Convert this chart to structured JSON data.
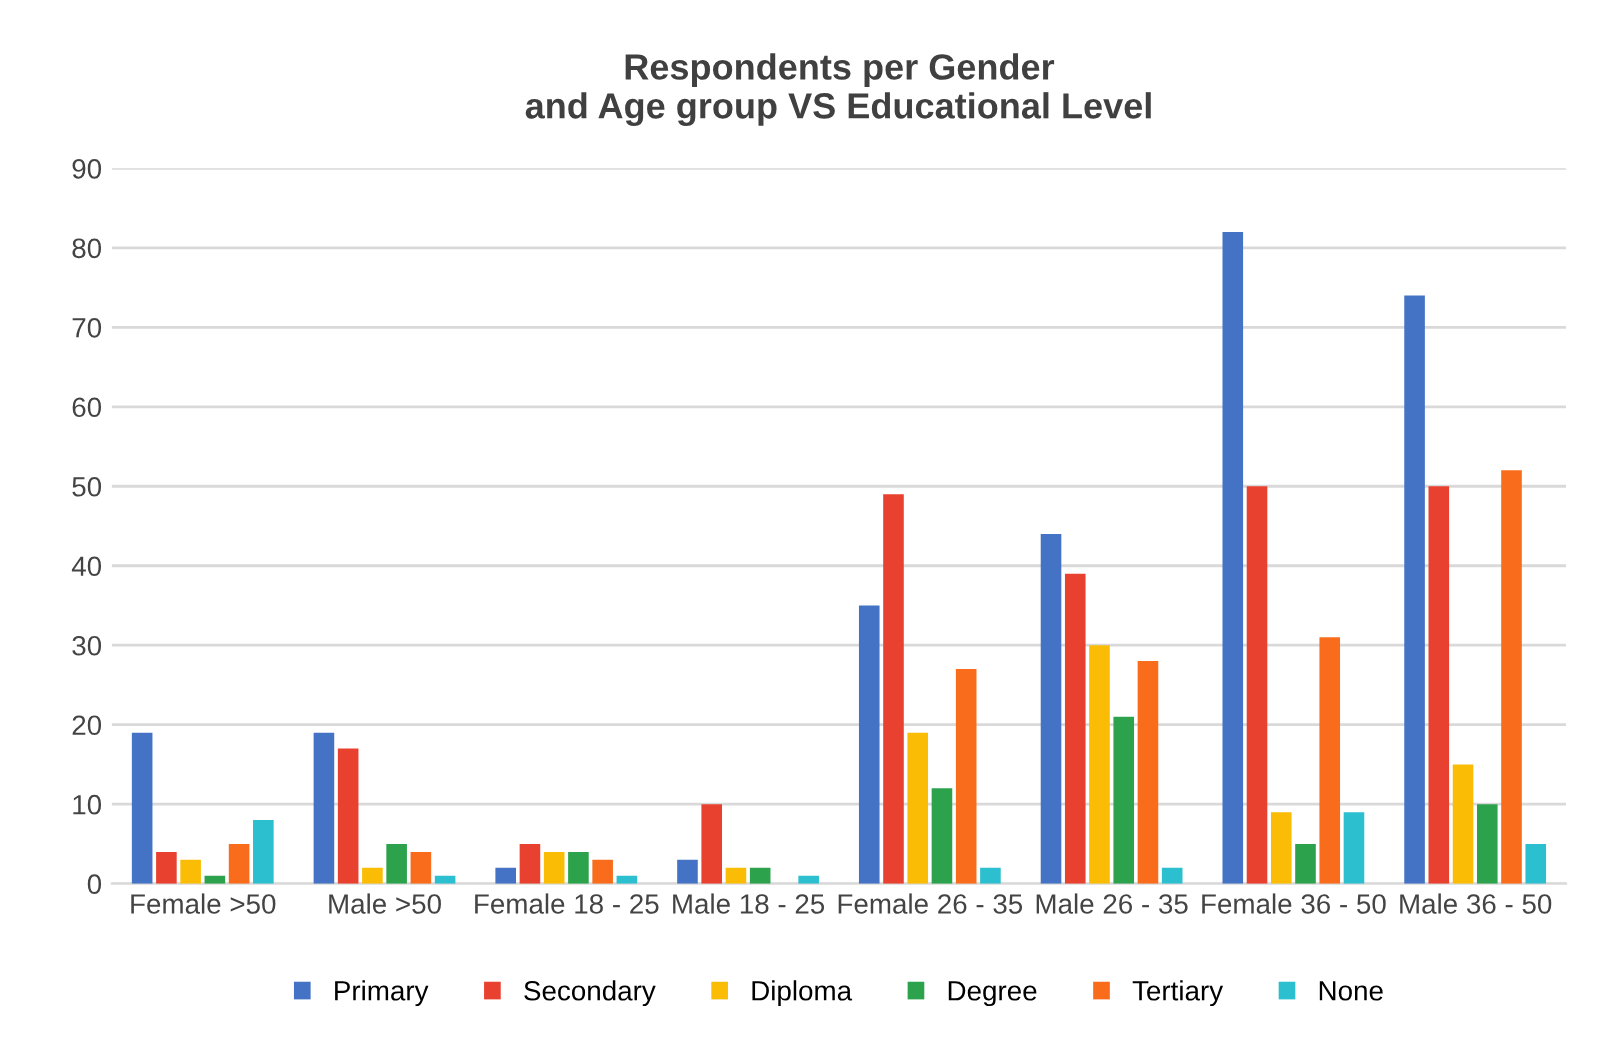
{
  "chart_data": {
    "type": "bar",
    "title": "Respondents per Gender\nand Age group VS Educational Level",
    "categories": [
      "Female >50",
      "Male >50",
      "Female 18 - 25",
      "Male 18 - 25",
      "Female 26 - 35",
      "Male 26 - 35",
      "Female 36 - 50",
      "Male 36 - 50"
    ],
    "series": [
      {
        "name": "Primary",
        "color": "#4472c4",
        "values": [
          19,
          19,
          2,
          3,
          35,
          44,
          82,
          74
        ]
      },
      {
        "name": "Secondary",
        "color": "#e8412f",
        "values": [
          4,
          17,
          5,
          10,
          49,
          39,
          50,
          50
        ]
      },
      {
        "name": "Diploma",
        "color": "#fbbc05",
        "values": [
          3,
          2,
          4,
          2,
          19,
          30,
          9,
          15
        ]
      },
      {
        "name": "Degree",
        "color": "#2ca24c",
        "values": [
          1,
          5,
          4,
          2,
          12,
          21,
          5,
          10
        ]
      },
      {
        "name": "Tertiary",
        "color": "#f86c1c",
        "values": [
          5,
          4,
          3,
          0,
          27,
          28,
          31,
          52
        ]
      },
      {
        "name": "None",
        "color": "#2cbfcf",
        "values": [
          8,
          1,
          1,
          1,
          2,
          2,
          9,
          5
        ]
      }
    ],
    "ylim": [
      0,
      90
    ],
    "yticks": [
      0,
      10,
      20,
      30,
      40,
      50,
      60,
      70,
      80,
      90
    ],
    "grid": "y",
    "legend": "bottom"
  }
}
